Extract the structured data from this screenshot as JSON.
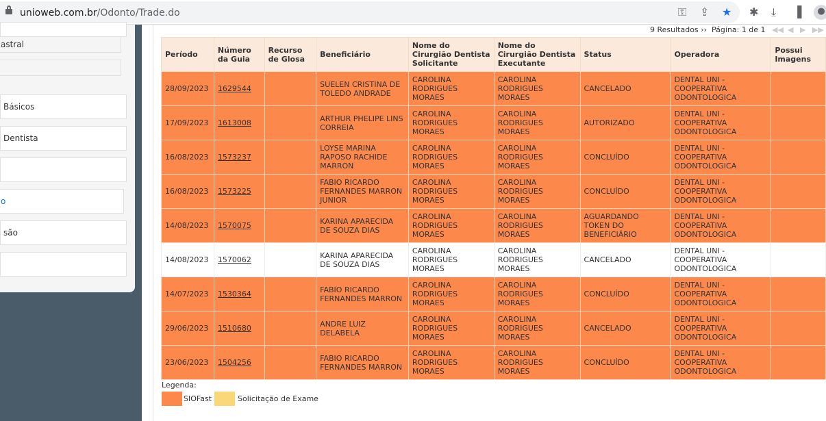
{
  "browser": {
    "url_host": "unioweb.com.br",
    "url_path": "/Odonto/Trade.do"
  },
  "sidebar": {
    "items": [
      "",
      "astral",
      "",
      "Básicos",
      "Dentista",
      "",
      "o",
      "são",
      ""
    ]
  },
  "pager": {
    "results": "9 Resultados ››",
    "page": "Página: 1 de 1"
  },
  "table": {
    "headers": [
      "Período",
      "Número da Guia",
      "Recurso de Glosa",
      "Beneficiário",
      "Nome do Cirurgião Dentista Solicitante",
      "Nome do Cirurgião Dentista Executante",
      "Status",
      "Operadora",
      "Possui Imagens"
    ],
    "rows": [
      {
        "periodo": "28/09/2023",
        "guia": "1629544",
        "recurso": "",
        "beneficiario": "SUELEN CRISTINA DE TOLEDO ANDRADE",
        "solicitante": "CAROLINA RODRIGUES MORAES",
        "executante": "CAROLINA RODRIGUES MORAES",
        "status": "CANCELADO",
        "operadora": "DENTAL UNI - COOPERATIVA ODONTOLOGICA",
        "imagens": "",
        "type": "o"
      },
      {
        "periodo": "17/09/2023",
        "guia": "1613008",
        "recurso": "",
        "beneficiario": "ARTHUR PHELIPE LINS CORREIA",
        "solicitante": "CAROLINA RODRIGUES MORAES",
        "executante": "CAROLINA RODRIGUES MORAES",
        "status": "AUTORIZADO",
        "operadora": "DENTAL UNI - COOPERATIVA ODONTOLOGICA",
        "imagens": "",
        "type": "o"
      },
      {
        "periodo": "16/08/2023",
        "guia": "1573237",
        "recurso": "",
        "beneficiario": "LOYSE MARINA RAPOSO RACHIDE MARRON",
        "solicitante": "CAROLINA RODRIGUES MORAES",
        "executante": "CAROLINA RODRIGUES MORAES",
        "status": "CONCLUÍDO",
        "operadora": "DENTAL UNI - COOPERATIVA ODONTOLOGICA",
        "imagens": "",
        "type": "o"
      },
      {
        "periodo": "16/08/2023",
        "guia": "1573225",
        "recurso": "",
        "beneficiario": "FABIO RICARDO FERNANDES MARRON JUNIOR",
        "solicitante": "CAROLINA RODRIGUES MORAES",
        "executante": "CAROLINA RODRIGUES MORAES",
        "status": "CONCLUÍDO",
        "operadora": "DENTAL UNI - COOPERATIVA ODONTOLOGICA",
        "imagens": "",
        "type": "o"
      },
      {
        "periodo": "14/08/2023",
        "guia": "1570075",
        "recurso": "",
        "beneficiario": "KARINA APARECIDA DE SOUZA DIAS",
        "solicitante": "CAROLINA RODRIGUES MORAES",
        "executante": "CAROLINA RODRIGUES MORAES",
        "status": "AGUARDANDO TOKEN DO BENEFICIÁRIO",
        "operadora": "DENTAL UNI - COOPERATIVA ODONTOLOGICA",
        "imagens": "",
        "type": "o"
      },
      {
        "periodo": "14/08/2023",
        "guia": "1570062",
        "recurso": "",
        "beneficiario": "KARINA APARECIDA DE SOUZA DIAS",
        "solicitante": "CAROLINA RODRIGUES MORAES",
        "executante": "CAROLINA RODRIGUES MORAES",
        "status": "CANCELADO",
        "operadora": "DENTAL UNI - COOPERATIVA ODONTOLOGICA",
        "imagens": "",
        "type": "w"
      },
      {
        "periodo": "14/07/2023",
        "guia": "1530364",
        "recurso": "",
        "beneficiario": "FABIO RICARDO FERNANDES MARRON",
        "solicitante": "CAROLINA RODRIGUES MORAES",
        "executante": "CAROLINA RODRIGUES MORAES",
        "status": "CONCLUÍDO",
        "operadora": "DENTAL UNI - COOPERATIVA ODONTOLOGICA",
        "imagens": "",
        "type": "o"
      },
      {
        "periodo": "29/06/2023",
        "guia": "1510680",
        "recurso": "",
        "beneficiario": "ANDRE LUIZ DELABELA",
        "solicitante": "CAROLINA RODRIGUES MORAES",
        "executante": "CAROLINA RODRIGUES MORAES",
        "status": "CANCELADO",
        "operadora": "DENTAL UNI - COOPERATIVA ODONTOLOGICA",
        "imagens": "",
        "type": "o"
      },
      {
        "periodo": "23/06/2023",
        "guia": "1504256",
        "recurso": "",
        "beneficiario": "FABIO RICARDO FERNANDES MARRON",
        "solicitante": "CAROLINA RODRIGUES MORAES",
        "executante": "CAROLINA RODRIGUES MORAES",
        "status": "CONCLUÍDO",
        "operadora": "DENTAL UNI - COOPERATIVA ODONTOLOGICA",
        "imagens": "",
        "type": "o"
      }
    ]
  },
  "legend": {
    "title": "Legenda:",
    "items": [
      {
        "label": "SIOFast",
        "color": "#fd884b"
      },
      {
        "label": "Solicitação de Exame",
        "color": "#fad878"
      }
    ]
  }
}
